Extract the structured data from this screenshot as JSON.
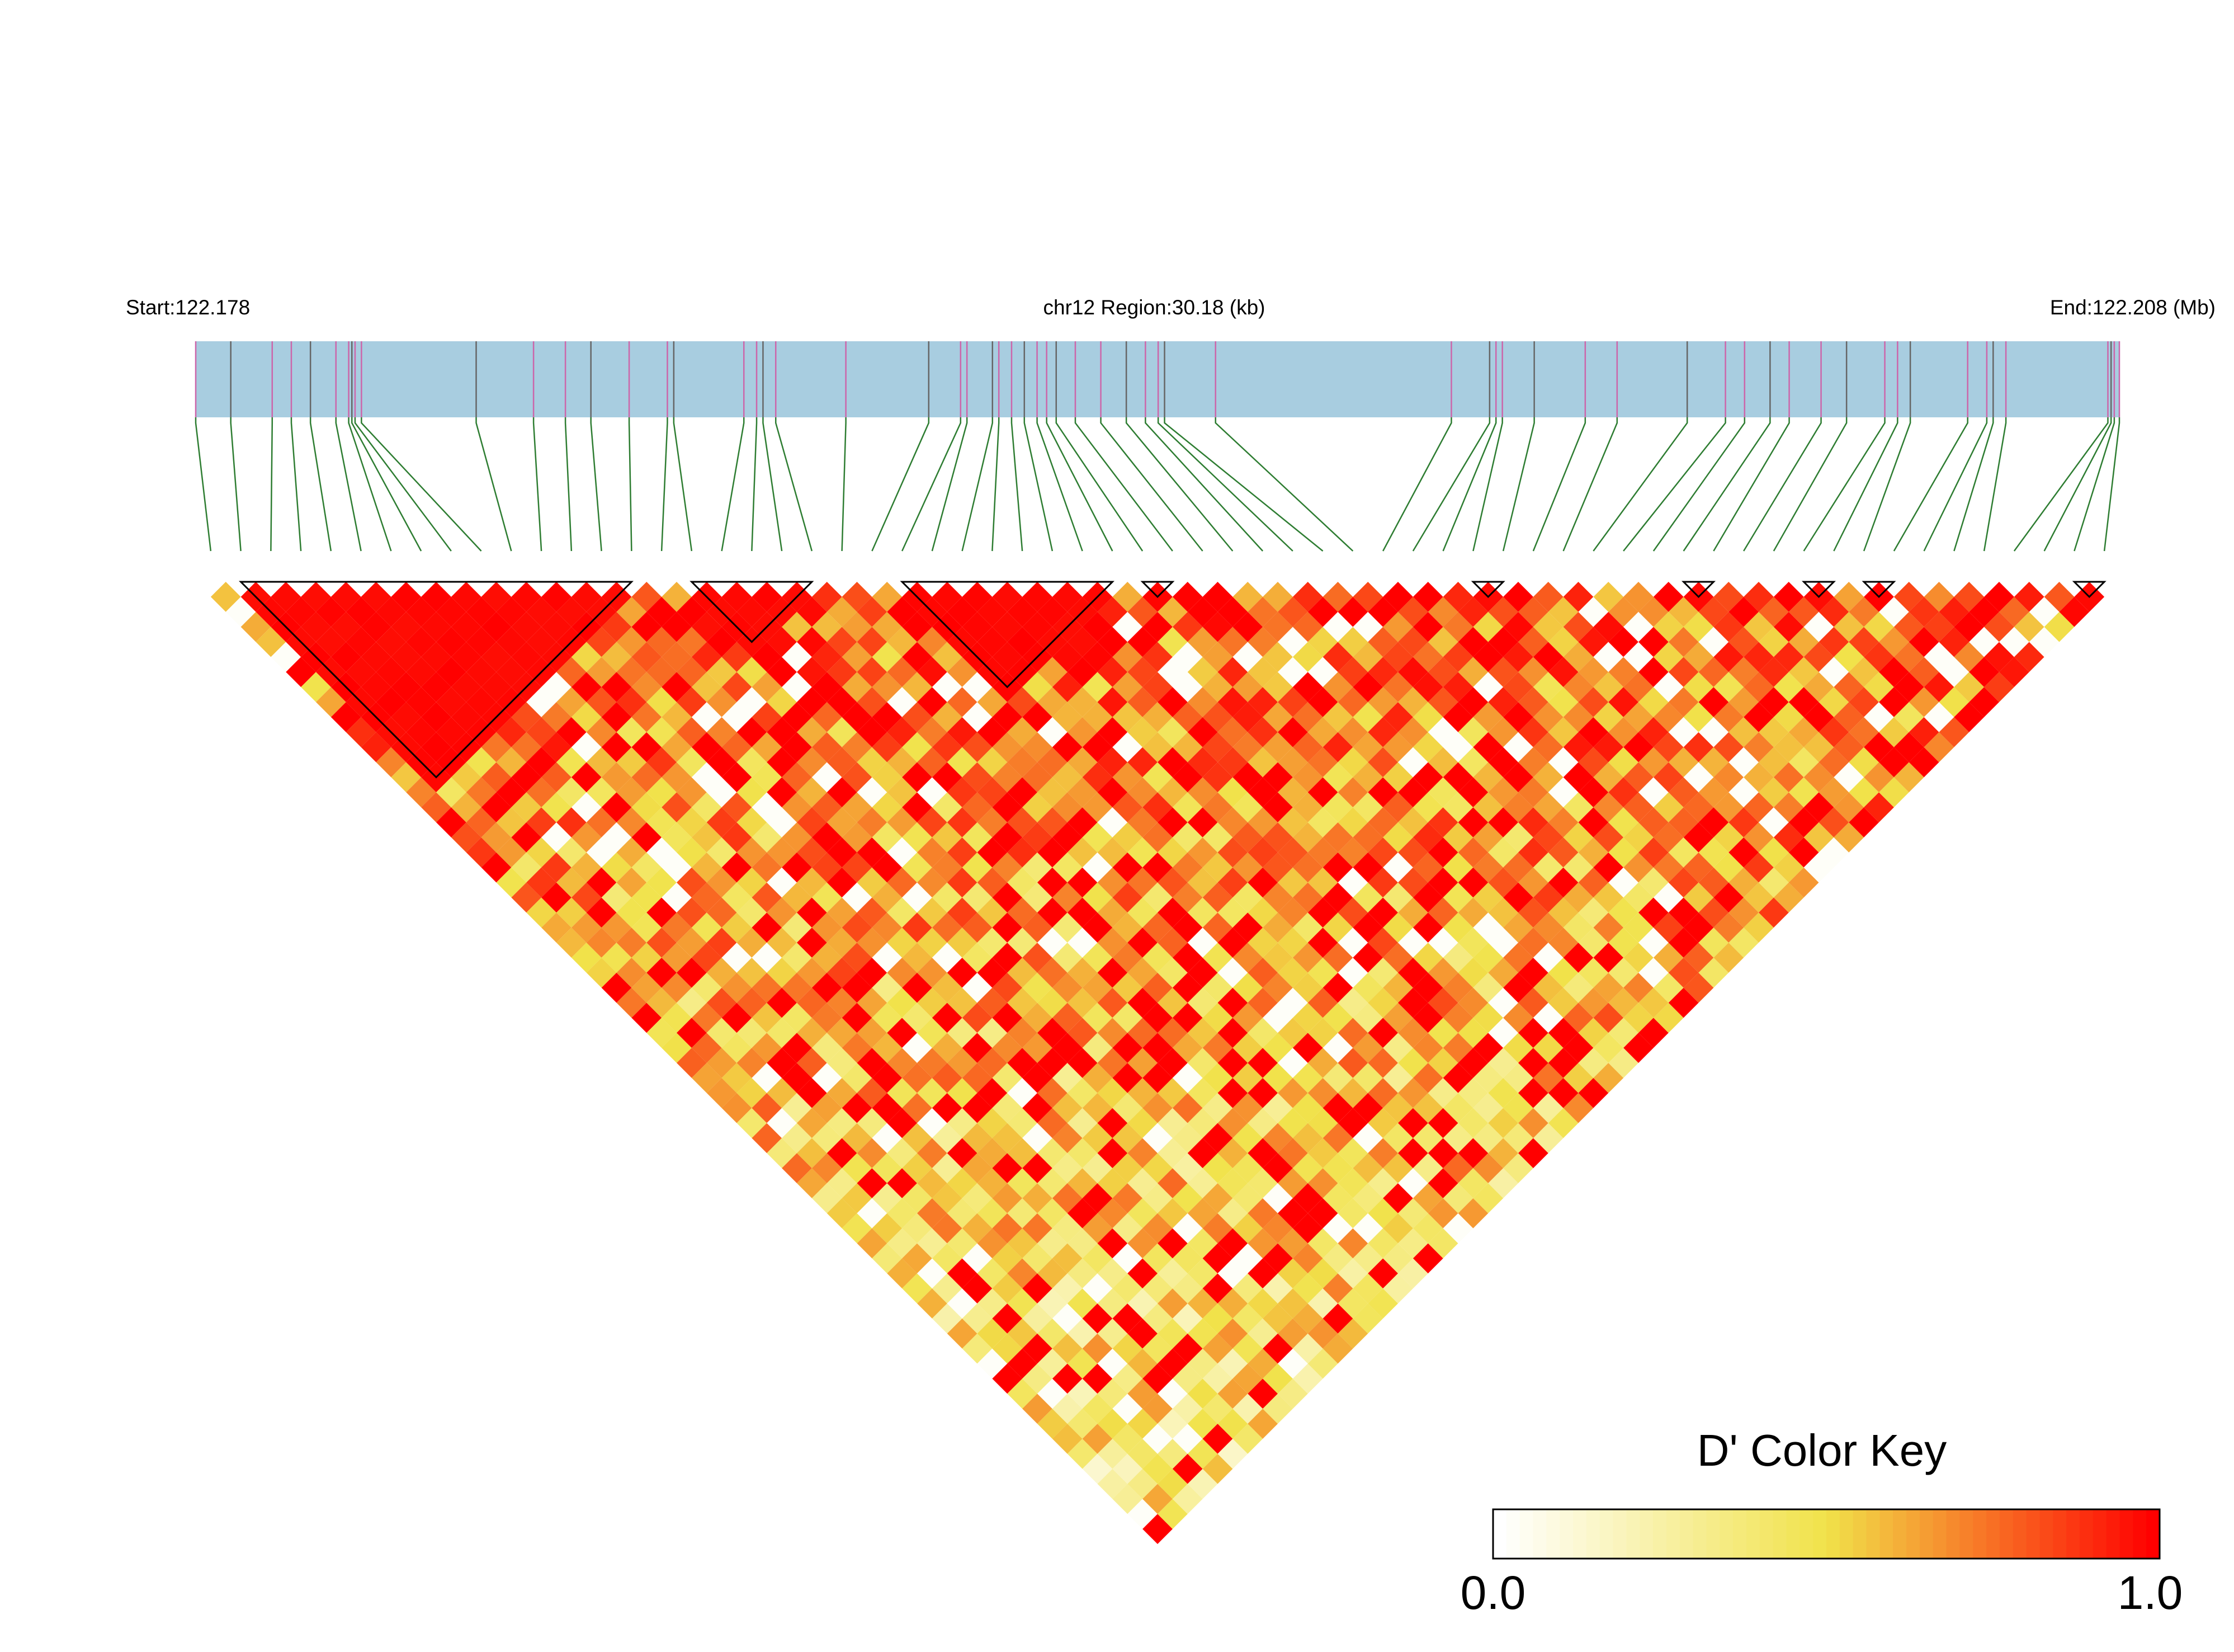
{
  "header": {
    "start_label": "Start:122.178",
    "region_label": "chr12 Region:30.18 (kb)",
    "end_label": "End:122.208 (Mb)"
  },
  "colors": {
    "region_bar": "#a8cde0",
    "snp_line_pink": "#cc66aa",
    "snp_line_gray": "#666666",
    "connector_line": "#2e7d32",
    "block_outline": "#000000",
    "ld_low": "#ffffff",
    "ld_mid": "#f1e24a",
    "ld_high": "#ff0000"
  },
  "chart_data": {
    "type": "heatmap",
    "description_of_encoding": "pairwise LD (D') between SNPs drawn as a rotated triangular matrix",
    "region": {
      "chromosome": "chr12",
      "start_mb": 122.178,
      "end_mb": 122.208,
      "length_kb": 30.18
    },
    "snp_count": 64,
    "snp_positions_kb": [
      0.0,
      0.55,
      1.2,
      1.5,
      1.8,
      2.2,
      2.4,
      2.45,
      2.5,
      2.6,
      4.4,
      5.3,
      5.8,
      6.2,
      6.8,
      7.4,
      7.5,
      8.6,
      8.8,
      8.9,
      9.1,
      10.2,
      11.5,
      12.0,
      12.1,
      12.5,
      12.6,
      12.8,
      13.0,
      13.2,
      13.35,
      13.5,
      13.8,
      14.2,
      14.6,
      14.9,
      15.1,
      15.2,
      16.0,
      19.7,
      20.3,
      20.4,
      20.5,
      21.0,
      21.8,
      22.3,
      23.4,
      24.0,
      24.3,
      24.7,
      25.0,
      25.5,
      25.9,
      26.5,
      26.7,
      26.9,
      27.8,
      28.1,
      28.2,
      28.4,
      30.0,
      30.05,
      30.1,
      30.18
    ],
    "haplotype_blocks": [
      [
        1,
        14
      ],
      [
        16,
        20
      ],
      [
        23,
        30
      ],
      [
        31,
        32
      ],
      [
        42,
        43
      ],
      [
        49,
        50
      ],
      [
        53,
        54
      ],
      [
        55,
        56
      ],
      [
        62,
        63
      ]
    ],
    "color_key": {
      "title": "D' Color Key",
      "min_label": "0.0",
      "max_label": "1.0",
      "range": [
        0.0,
        1.0
      ],
      "gradient": [
        "#ffffff",
        "#f1e24a",
        "#ff0000"
      ]
    }
  }
}
